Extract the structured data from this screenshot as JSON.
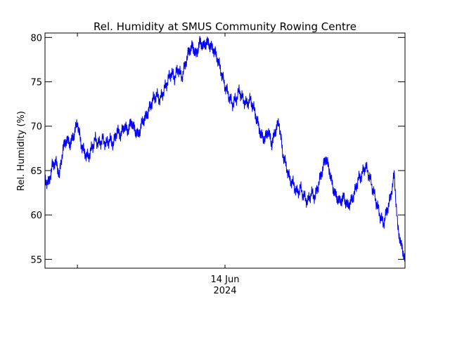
{
  "chart_data": {
    "type": "line",
    "title": "Rel. Humidity at SMUS Community Rowing Centre",
    "xlabel": "",
    "ylabel": "Rel. Humidity (%)",
    "ylim": [
      54,
      80.5
    ],
    "y_ticks": [
      55,
      60,
      65,
      70,
      75,
      80
    ],
    "xlim": [
      0,
      100
    ],
    "x_ticks": [
      {
        "x": 9,
        "label_line1": "",
        "label_line2": ""
      },
      {
        "x": 50,
        "label_line1": "14 Jun",
        "label_line2": "2024"
      }
    ],
    "line_color": "#0000ff",
    "series": [
      {
        "name": "Rel. Humidity",
        "x": [
          0,
          1,
          2,
          3,
          4,
          5,
          6,
          7,
          8,
          9,
          10,
          11,
          12,
          13,
          14,
          15,
          16,
          17,
          18,
          19,
          20,
          21,
          22,
          23,
          24,
          25,
          26,
          27,
          28,
          29,
          30,
          31,
          32,
          33,
          34,
          35,
          36,
          37,
          38,
          39,
          40,
          41,
          42,
          43,
          44,
          45,
          46,
          47,
          48,
          49,
          50,
          51,
          52,
          53,
          54,
          55,
          56,
          57,
          58,
          59,
          60,
          61,
          62,
          63,
          64,
          65,
          66,
          67,
          68,
          69,
          70,
          71,
          72,
          73,
          74,
          75,
          76,
          77,
          78,
          79,
          80,
          81,
          82,
          83,
          84,
          85,
          86,
          87,
          88,
          89,
          90,
          91,
          92,
          93,
          94,
          95,
          96,
          97,
          98,
          99,
          100
        ],
        "values": [
          64.0,
          63.5,
          65.5,
          66.0,
          64.5,
          67.5,
          68.5,
          68.0,
          69.0,
          70.5,
          68.0,
          67.0,
          66.5,
          67.5,
          68.5,
          68.0,
          68.5,
          68.0,
          68.5,
          68.0,
          69.5,
          69.0,
          70.0,
          69.5,
          70.5,
          69.5,
          69.0,
          70.5,
          71.0,
          72.0,
          73.0,
          73.5,
          73.0,
          74.0,
          75.0,
          76.0,
          75.5,
          76.5,
          75.5,
          77.0,
          78.5,
          79.0,
          78.0,
          79.5,
          79.0,
          79.5,
          79.0,
          78.5,
          77.5,
          76.0,
          74.5,
          73.5,
          72.5,
          73.0,
          74.0,
          73.0,
          72.5,
          73.0,
          72.0,
          70.5,
          69.0,
          68.5,
          69.5,
          68.0,
          69.5,
          70.5,
          67.0,
          65.5,
          64.0,
          63.5,
          62.5,
          63.0,
          62.0,
          61.5,
          62.5,
          62.0,
          63.5,
          65.0,
          66.5,
          65.0,
          63.0,
          62.0,
          61.5,
          62.0,
          61.0,
          61.5,
          62.5,
          64.0,
          64.5,
          65.5,
          64.5,
          63.0,
          61.5,
          60.0,
          59.0,
          60.5,
          62.0,
          64.5,
          58.5,
          56.5,
          55.0
        ]
      }
    ]
  }
}
